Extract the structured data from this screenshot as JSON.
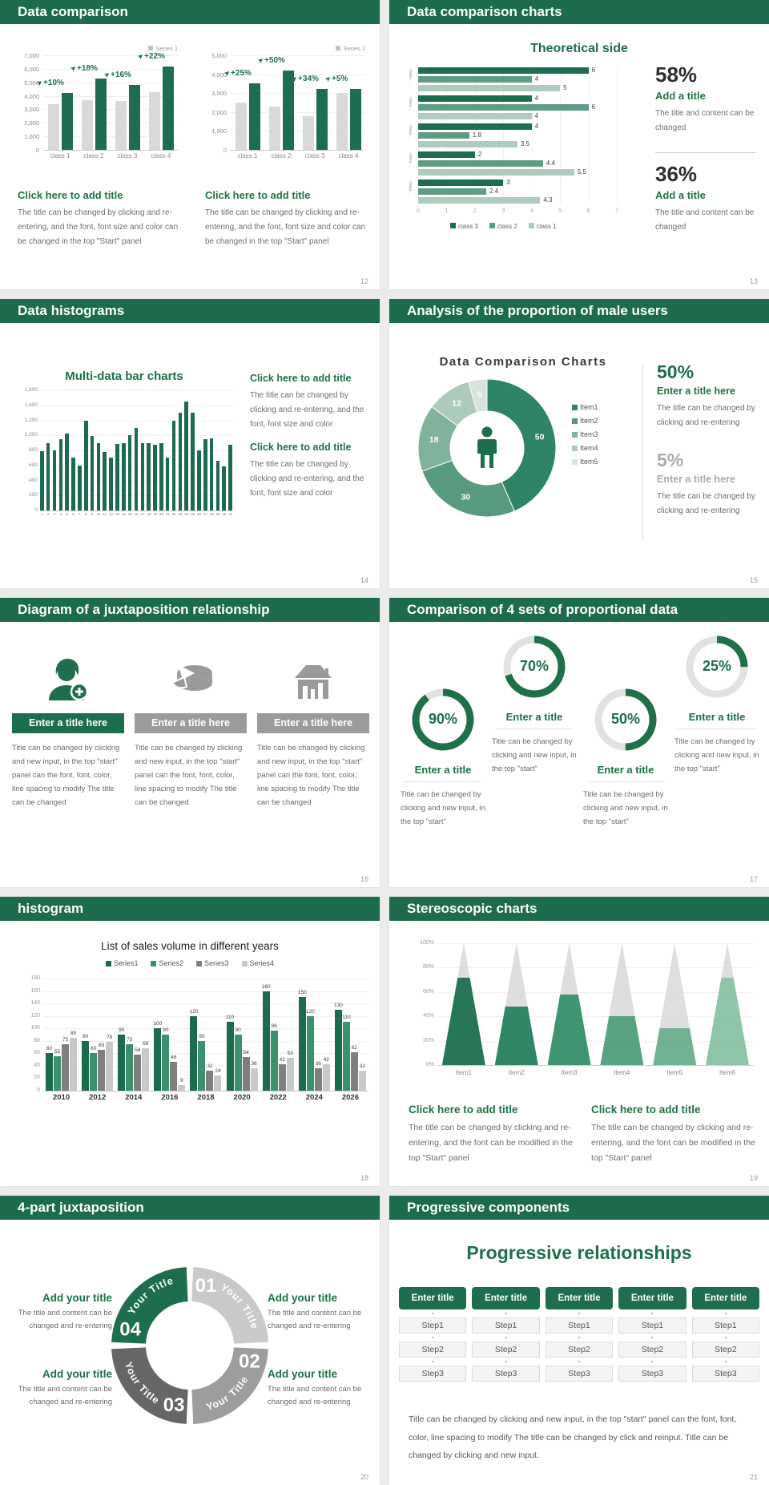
{
  "palette": {
    "header_bg": "#1B6B4C",
    "accent_green": "#1E7049",
    "title_green": "#217346",
    "dark_bar": "#1D6E50",
    "mid_green": "#5E9C84",
    "light_green": "#AECBBD",
    "gray_bar": "#D9D9D9",
    "body_text": "#6E6E6E",
    "page_bg": "#ECECEC"
  },
  "slides": {
    "s1": {
      "header": "Data comparison",
      "page": "12",
      "legend": "Series 1",
      "block_title": "Click here to add title",
      "block_body": "The title can be changed by clicking and re-entering, and the font, font size and color can be changed in the top \"Start\" panel"
    },
    "s2": {
      "header": "Data comparison charts",
      "page": "13",
      "stats": [
        {
          "pct": "58%",
          "title": "Add a title",
          "body": "The title and content can be changed"
        },
        {
          "pct": "36%",
          "title": "Add a title",
          "body": "The title and content can be changed"
        }
      ]
    },
    "s3": {
      "header": "Data histograms",
      "page": "14",
      "blocks": [
        {
          "title": "Click here to add title",
          "body": "The title can be changed by clicking and re-entering, and the font, font size and color"
        },
        {
          "title": "Click here to add title",
          "body": "The title can be changed by clicking and re-entering, and the font, font size and color"
        }
      ]
    },
    "s4": {
      "header": "Analysis of the proportion of male users",
      "page": "15",
      "stats": [
        {
          "pct": "50%",
          "title": "Enter a title here",
          "body": "The title can be changed by clicking and re-entering"
        },
        {
          "pct": "5%",
          "title": "Enter a title here",
          "body": "The title can be changed by clicking and re-entering"
        }
      ]
    },
    "s5": {
      "header": "Diagram of a juxtaposition relationship",
      "page": "16",
      "items": [
        {
          "icon": "person-add-icon",
          "banner": "Enter a title here",
          "body": "Title can be changed by clicking and new input, in the top \"start\" panel can the font, font, color, line spacing to modify The title can be changed"
        },
        {
          "icon": "pie-cake-icon",
          "banner": "Enter a title here",
          "body": "Title can be changed by clicking and new input, in the top \"start\" panel can the font, font, color, line spacing to modify The title can be changed"
        },
        {
          "icon": "building-icon",
          "banner": "Enter a title here",
          "body": "Title can be changed by clicking and new input, in the top \"start\" panel can the font, font, color, line spacing to modify The title can be changed"
        }
      ]
    },
    "s6": {
      "header": "Comparison of 4 sets of proportional data",
      "page": "17",
      "items": [
        {
          "pct": "90%",
          "title": "Enter a title",
          "body": "Title can be changed by clicking and new input, in the top \"start\"",
          "raised": false
        },
        {
          "pct": "70%",
          "title": "Enter a title",
          "body": "Title can be changed by clicking and new input, in the top \"start\"",
          "raised": true
        },
        {
          "pct": "50%",
          "title": "Enter a title",
          "body": "Title can be changed by clicking and new input, in the top \"start\"",
          "raised": false
        },
        {
          "pct": "25%",
          "title": "Enter a title",
          "body": "Title can be changed by clicking and new input, in the top \"start\"",
          "raised": true
        }
      ]
    },
    "s7": {
      "header": "histogram",
      "page": "18"
    },
    "s8": {
      "header": "Stereoscopic charts",
      "page": "19",
      "blocks": [
        {
          "title": "Click here to add title",
          "body": "The title can be changed by clicking and re-entering, and the font can be modified in the top \"Start\" panel"
        },
        {
          "title": "Click here to add title",
          "body": "The title can be changed by clicking and re-entering, and the font can be modified in the top \"Start\" panel"
        }
      ]
    },
    "s9": {
      "header": "4-part juxtaposition",
      "page": "20",
      "blocks": [
        {
          "title": "Add your title",
          "body": "The title and content can be changed and re-entering"
        },
        {
          "title": "Add your title",
          "body": "The title and content can be changed and re-entering"
        },
        {
          "title": "Add your title",
          "body": "The title and content can be changed and re-entering"
        },
        {
          "title": "Add your title",
          "body": "The title and content can be changed and re-entering"
        }
      ]
    },
    "s10": {
      "header": "Progressive components",
      "page": "21",
      "title": "Progressive relationships",
      "column_title": "Enter title",
      "columns": 5,
      "steps": [
        "Step1",
        "Step2",
        "Step3"
      ],
      "body": "Title can be changed by clicking and new input, in the top \"start\" panel can the font, font, color, line spacing to modify The title can be changed by click and reinput. Title can be changed by clicking and new input."
    }
  },
  "chart_data": [
    {
      "id": "pair_a",
      "type": "bar",
      "slide": "s1",
      "legend": "Series 1",
      "categories": [
        "class 1",
        "class 2",
        "class 3",
        "class 4"
      ],
      "series": [
        {
          "name": "base",
          "color": "#D9D9D9",
          "values": [
            3400,
            3700,
            3600,
            4300
          ]
        },
        {
          "name": "Series 1",
          "color": "#1D6E50",
          "values": [
            4200,
            5300,
            4800,
            6200
          ]
        }
      ],
      "bar_labels": [
        "+10%",
        "+18%",
        "+16%",
        "+22%"
      ],
      "ylim": [
        0,
        7000
      ],
      "ytick_step": 1000
    },
    {
      "id": "pair_b",
      "type": "bar",
      "slide": "s1",
      "legend": "Series 1",
      "categories": [
        "class 1",
        "class 2",
        "class 3",
        "class 4"
      ],
      "series": [
        {
          "name": "base",
          "color": "#D9D9D9",
          "values": [
            2500,
            2300,
            1800,
            3000
          ]
        },
        {
          "name": "Series 1",
          "color": "#1D6E50",
          "values": [
            3500,
            4200,
            3200,
            3200
          ]
        }
      ],
      "bar_labels": [
        "+25%",
        "+50%",
        "+34%",
        "+5%"
      ],
      "ylim": [
        0,
        5000
      ],
      "ytick_step": 1000
    },
    {
      "id": "hbar",
      "type": "hbar",
      "slide": "s2",
      "title": "Theoretical side",
      "categories": [
        "class…",
        "class…",
        "class…",
        "class…",
        "class…"
      ],
      "series": [
        {
          "name": "class 3",
          "color": "#1D6E50",
          "values": [
            6,
            4,
            4,
            2,
            3
          ]
        },
        {
          "name": "class 2",
          "color": "#5E9C84",
          "values": [
            4,
            6,
            1.8,
            4.4,
            2.4
          ]
        },
        {
          "name": "class 1",
          "color": "#AECBBD",
          "values": [
            5,
            4,
            3.5,
            5.5,
            4.3
          ]
        }
      ],
      "xlim": [
        0,
        7
      ],
      "xticks": [
        "0",
        "1",
        "2",
        "3",
        "4",
        "5",
        "6",
        "7"
      ]
    },
    {
      "id": "histo",
      "type": "bar",
      "slide": "s3",
      "title": "Multi-data bar charts",
      "categories": [
        "1",
        "2",
        "3",
        "4",
        "5",
        "6",
        "7",
        "8",
        "9",
        "10",
        "11",
        "12",
        "13",
        "14",
        "15",
        "16",
        "17",
        "18",
        "19",
        "20",
        "21",
        "22",
        "23",
        "24",
        "25",
        "26",
        "27",
        "28",
        "29",
        "30",
        "31"
      ],
      "values": [
        790,
        900,
        800,
        950,
        1020,
        700,
        600,
        1200,
        990,
        900,
        780,
        700,
        890,
        900,
        1000,
        1100,
        900,
        900,
        880,
        900,
        700,
        1200,
        1300,
        1450,
        1300,
        800,
        950,
        960,
        660,
        590,
        870
      ],
      "color": "#1D6B4F",
      "ylim": [
        0,
        1600
      ],
      "ytick_step": 200
    },
    {
      "id": "donut",
      "type": "pie",
      "slide": "s4",
      "title": "Data Comparison Charts",
      "labels": [
        "Item1",
        "Item2",
        "Item3",
        "Item4",
        "Item5"
      ],
      "values": [
        50,
        30,
        18,
        12,
        5
      ],
      "colors": [
        "#2F8465",
        "#579A80",
        "#81B29B",
        "#ACCBBA",
        "#D5E4DC"
      ],
      "center_icon": "male-person-icon"
    },
    {
      "id": "gauges",
      "type": "donut-gauges",
      "slide": "s6",
      "values": [
        90,
        70,
        50,
        25
      ],
      "color": "#1E7049",
      "track": "#E2E2E2"
    },
    {
      "id": "sales",
      "type": "bar",
      "slide": "s7",
      "title": "List of sales volume in different years",
      "categories": [
        "2010",
        "2012",
        "2014",
        "2016",
        "2018",
        "2020",
        "2022",
        "2024",
        "2026"
      ],
      "series": [
        {
          "name": "Series1",
          "color": "#1D6B4E",
          "values": [
            60,
            80,
            90,
            100,
            120,
            110,
            160,
            150,
            130
          ]
        },
        {
          "name": "Series2",
          "color": "#3B916E",
          "values": [
            55,
            60,
            75,
            90,
            80,
            90,
            96,
            120,
            110
          ]
        },
        {
          "name": "Series3",
          "color": "#7F7F7F",
          "values": [
            75,
            65,
            58,
            46,
            32,
            54,
            42,
            36,
            62
          ]
        },
        {
          "name": "Series4",
          "color": "#C9C9C9",
          "values": [
            85,
            78,
            68,
            9,
            24,
            36,
            53,
            42,
            32
          ]
        }
      ],
      "ylim": [
        0,
        180
      ],
      "ytick_step": 20
    },
    {
      "id": "pyramids",
      "type": "pyramid",
      "slide": "s8",
      "categories": [
        "Item1",
        "Item2",
        "Item3",
        "Item4",
        "Item5",
        "Item6"
      ],
      "values": [
        72,
        48,
        58,
        40,
        30,
        72
      ],
      "colors": [
        "#156B4A",
        "#1F7D58",
        "#2F8D66",
        "#4A9C77",
        "#65AC89",
        "#85C0A2"
      ],
      "yticks": [
        "0%",
        "20%",
        "40%",
        "60%",
        "80%",
        "100%"
      ]
    },
    {
      "id": "ring4",
      "type": "ring-4",
      "slide": "s9",
      "segments": [
        {
          "num": "01",
          "label": "Your Title",
          "color": "#C9C9C9"
        },
        {
          "num": "02",
          "label": "Your Title",
          "color": "#9D9D9D"
        },
        {
          "num": "03",
          "label": "Your Title",
          "color": "#666666"
        },
        {
          "num": "04",
          "label": "Your Title",
          "color": "#1D6E4E"
        }
      ]
    }
  ]
}
